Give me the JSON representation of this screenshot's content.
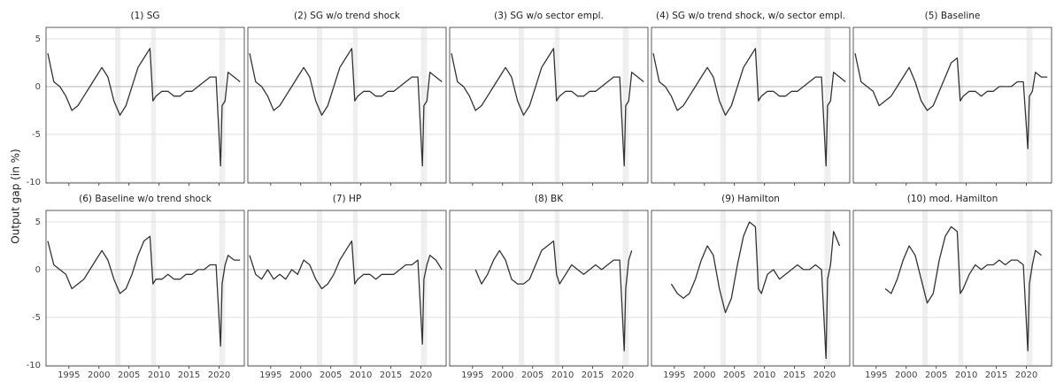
{
  "ylabel": "Output gap (in %)",
  "shaded_periods": [
    [
      2002.7,
      2003.6
    ],
    [
      2008.7,
      2009.5
    ],
    [
      2020.0,
      2021.0
    ]
  ],
  "chart_data": [
    {
      "type": "line",
      "title": "(1) SG",
      "x": [
        1991.5,
        1992.5,
        1993.5,
        1994.5,
        1995.5,
        1996.5,
        1997.5,
        1998.5,
        1999.5,
        2000.5,
        2001.5,
        2002.5,
        2003.5,
        2004.5,
        2005.5,
        2006.5,
        2007.5,
        2008.5,
        2009.0,
        2009.5,
        2010.5,
        2011.5,
        2012.5,
        2013.5,
        2014.5,
        2015.5,
        2016.5,
        2017.5,
        2018.5,
        2019.5,
        2020.25,
        2020.5,
        2021.0,
        2021.5,
        2022.5,
        2023.5
      ],
      "series": [
        {
          "color": "#333333",
          "values": [
            3.5,
            0.5,
            0.0,
            -1.0,
            -2.5,
            -2.0,
            -1.0,
            0.0,
            1.0,
            2.0,
            1.0,
            -1.5,
            -3.0,
            -2.0,
            0.0,
            2.0,
            3.0,
            4.0,
            -1.5,
            -1.0,
            -0.5,
            -0.5,
            -1.0,
            -1.0,
            -0.5,
            -0.5,
            0.0,
            0.5,
            1.0,
            1.0,
            -8.3,
            -2.0,
            -1.5,
            1.5,
            1.0,
            0.5
          ]
        }
      ],
      "xlim": [
        1991.2,
        2024.2
      ],
      "xticks": [
        1995,
        2000,
        2005,
        2010,
        2015,
        2020
      ],
      "ylim": [
        -10.1,
        6.2
      ],
      "yticks": [
        -10,
        -5,
        0,
        5
      ]
    },
    {
      "type": "line",
      "title": "(2) SG w/o trend shock",
      "x": [
        1991.5,
        1992.5,
        1993.5,
        1994.5,
        1995.5,
        1996.5,
        1997.5,
        1998.5,
        1999.5,
        2000.5,
        2001.5,
        2002.5,
        2003.5,
        2004.5,
        2005.5,
        2006.5,
        2007.5,
        2008.5,
        2009.0,
        2009.5,
        2010.5,
        2011.5,
        2012.5,
        2013.5,
        2014.5,
        2015.5,
        2016.5,
        2017.5,
        2018.5,
        2019.5,
        2020.25,
        2020.5,
        2021.0,
        2021.5,
        2022.5,
        2023.5
      ],
      "series": [
        {
          "color": "#333333",
          "values": [
            3.5,
            0.5,
            0.0,
            -1.0,
            -2.5,
            -2.0,
            -1.0,
            0.0,
            1.0,
            2.0,
            1.0,
            -1.5,
            -3.0,
            -2.0,
            0.0,
            2.0,
            3.0,
            4.0,
            -1.5,
            -1.0,
            -0.5,
            -0.5,
            -1.0,
            -1.0,
            -0.5,
            -0.5,
            0.0,
            0.5,
            1.0,
            1.0,
            -8.3,
            -2.0,
            -1.5,
            1.5,
            1.0,
            0.5
          ]
        }
      ],
      "xlim": [
        1991.2,
        2024.2
      ],
      "xticks": [
        1995,
        2000,
        2005,
        2010,
        2015,
        2020
      ],
      "ylim": [
        -10.1,
        6.2
      ],
      "yticks": [
        -10,
        -5,
        0,
        5
      ]
    },
    {
      "type": "line",
      "title": "(3) SG w/o sector empl.",
      "x": [
        1991.5,
        1992.5,
        1993.5,
        1994.5,
        1995.5,
        1996.5,
        1997.5,
        1998.5,
        1999.5,
        2000.5,
        2001.5,
        2002.5,
        2003.5,
        2004.5,
        2005.5,
        2006.5,
        2007.5,
        2008.5,
        2009.0,
        2009.5,
        2010.5,
        2011.5,
        2012.5,
        2013.5,
        2014.5,
        2015.5,
        2016.5,
        2017.5,
        2018.5,
        2019.5,
        2020.25,
        2020.5,
        2021.0,
        2021.5,
        2022.5,
        2023.5
      ],
      "series": [
        {
          "color": "#333333",
          "values": [
            3.5,
            0.5,
            0.0,
            -1.0,
            -2.5,
            -2.0,
            -1.0,
            0.0,
            1.0,
            2.0,
            1.0,
            -1.5,
            -3.0,
            -2.0,
            0.0,
            2.0,
            3.0,
            4.0,
            -1.5,
            -1.0,
            -0.5,
            -0.5,
            -1.0,
            -1.0,
            -0.5,
            -0.5,
            0.0,
            0.5,
            1.0,
            1.0,
            -8.3,
            -2.0,
            -1.5,
            1.5,
            1.0,
            0.5
          ]
        }
      ],
      "xlim": [
        1991.2,
        2024.2
      ],
      "xticks": [
        1995,
        2000,
        2005,
        2010,
        2015,
        2020
      ],
      "ylim": [
        -10.1,
        6.2
      ],
      "yticks": [
        -10,
        -5,
        0,
        5
      ]
    },
    {
      "type": "line",
      "title": "(4) SG w/o trend shock, w/o sector empl.",
      "x": [
        1991.5,
        1992.5,
        1993.5,
        1994.5,
        1995.5,
        1996.5,
        1997.5,
        1998.5,
        1999.5,
        2000.5,
        2001.5,
        2002.5,
        2003.5,
        2004.5,
        2005.5,
        2006.5,
        2007.5,
        2008.5,
        2009.0,
        2009.5,
        2010.5,
        2011.5,
        2012.5,
        2013.5,
        2014.5,
        2015.5,
        2016.5,
        2017.5,
        2018.5,
        2019.5,
        2020.25,
        2020.5,
        2021.0,
        2021.5,
        2022.5,
        2023.5
      ],
      "series": [
        {
          "color": "#333333",
          "values": [
            3.5,
            0.5,
            0.0,
            -1.0,
            -2.5,
            -2.0,
            -1.0,
            0.0,
            1.0,
            2.0,
            1.0,
            -1.5,
            -3.0,
            -2.0,
            0.0,
            2.0,
            3.0,
            4.0,
            -1.5,
            -1.0,
            -0.5,
            -0.5,
            -1.0,
            -1.0,
            -0.5,
            -0.5,
            0.0,
            0.5,
            1.0,
            1.0,
            -8.3,
            -2.0,
            -1.5,
            1.5,
            1.0,
            0.5
          ]
        }
      ],
      "xlim": [
        1991.2,
        2024.2
      ],
      "xticks": [
        1995,
        2000,
        2005,
        2010,
        2015,
        2020
      ],
      "ylim": [
        -10.1,
        6.2
      ],
      "yticks": [
        -10,
        -5,
        0,
        5
      ]
    },
    {
      "type": "line",
      "title": "(5) Baseline",
      "x": [
        1991.5,
        1992.5,
        1993.5,
        1994.5,
        1995.5,
        1996.5,
        1997.5,
        1998.5,
        1999.5,
        2000.5,
        2001.5,
        2002.5,
        2003.5,
        2004.5,
        2005.5,
        2006.5,
        2007.5,
        2008.5,
        2009.0,
        2009.5,
        2010.5,
        2011.5,
        2012.5,
        2013.5,
        2014.5,
        2015.5,
        2016.5,
        2017.5,
        2018.5,
        2019.5,
        2020.25,
        2020.5,
        2021.0,
        2021.5,
        2022.5,
        2023.5
      ],
      "series": [
        {
          "color": "#333333",
          "values": [
            3.5,
            0.5,
            0.0,
            -0.5,
            -2.0,
            -1.5,
            -1.0,
            0.0,
            1.0,
            2.0,
            0.5,
            -1.5,
            -2.5,
            -2.0,
            -0.5,
            1.0,
            2.5,
            3.0,
            -1.5,
            -1.0,
            -0.5,
            -0.5,
            -1.0,
            -0.5,
            -0.5,
            0.0,
            0.0,
            0.0,
            0.5,
            0.5,
            -6.5,
            -1.0,
            -0.5,
            1.5,
            1.0,
            1.0
          ]
        }
      ],
      "xlim": [
        1991.2,
        2024.2
      ],
      "xticks": [
        1995,
        2000,
        2005,
        2010,
        2015,
        2020
      ],
      "ylim": [
        -10.1,
        6.2
      ],
      "yticks": [
        -10,
        -5,
        0,
        5
      ]
    },
    {
      "type": "line",
      "title": "(6) Baseline w/o trend shock",
      "x": [
        1991.5,
        1992.5,
        1993.5,
        1994.5,
        1995.5,
        1996.5,
        1997.5,
        1998.5,
        1999.5,
        2000.5,
        2001.5,
        2002.5,
        2003.5,
        2004.5,
        2005.5,
        2006.5,
        2007.5,
        2008.5,
        2009.0,
        2009.5,
        2010.5,
        2011.5,
        2012.5,
        2013.5,
        2014.5,
        2015.5,
        2016.5,
        2017.5,
        2018.5,
        2019.5,
        2020.25,
        2020.5,
        2021.0,
        2021.5,
        2022.5,
        2023.5
      ],
      "series": [
        {
          "color": "#333333",
          "values": [
            3.0,
            0.5,
            0.0,
            -0.5,
            -2.0,
            -1.5,
            -1.0,
            0.0,
            1.0,
            2.0,
            1.0,
            -1.0,
            -2.5,
            -2.0,
            -0.5,
            1.5,
            3.0,
            3.5,
            -1.5,
            -1.0,
            -1.0,
            -0.5,
            -1.0,
            -1.0,
            -0.5,
            -0.5,
            0.0,
            0.0,
            0.5,
            0.5,
            -8.0,
            -1.5,
            0.5,
            1.5,
            1.0,
            1.0
          ]
        }
      ],
      "xlim": [
        1991.2,
        2024.2
      ],
      "xticks": [
        1995,
        2000,
        2005,
        2010,
        2015,
        2020
      ],
      "ylim": [
        -10.1,
        6.2
      ],
      "yticks": [
        -10,
        -5,
        0,
        5
      ]
    },
    {
      "type": "line",
      "title": "(7) HP",
      "x": [
        1991.5,
        1992.5,
        1993.5,
        1994.5,
        1995.5,
        1996.5,
        1997.5,
        1998.5,
        1999.5,
        2000.5,
        2001.5,
        2002.5,
        2003.5,
        2004.5,
        2005.5,
        2006.5,
        2007.5,
        2008.5,
        2009.0,
        2009.5,
        2010.5,
        2011.5,
        2012.5,
        2013.5,
        2014.5,
        2015.5,
        2016.5,
        2017.5,
        2018.5,
        2019.5,
        2020.25,
        2020.5,
        2021.0,
        2021.5,
        2022.5,
        2023.5
      ],
      "series": [
        {
          "color": "#333333",
          "values": [
            1.5,
            -0.5,
            -1.0,
            0.0,
            -1.0,
            -0.5,
            -1.0,
            0.0,
            -0.5,
            1.0,
            0.5,
            -1.0,
            -2.0,
            -1.5,
            -0.5,
            1.0,
            2.0,
            3.0,
            -1.5,
            -1.0,
            -0.5,
            -0.5,
            -1.0,
            -0.5,
            -0.5,
            -0.5,
            0.0,
            0.5,
            0.5,
            1.0,
            -7.8,
            -1.0,
            0.5,
            1.5,
            1.0,
            0.0
          ]
        }
      ],
      "xlim": [
        1991.2,
        2024.2
      ],
      "xticks": [
        1995,
        2000,
        2005,
        2010,
        2015,
        2020
      ],
      "ylim": [
        -10.1,
        6.2
      ],
      "yticks": [
        -10,
        -5,
        0,
        5
      ]
    },
    {
      "type": "line",
      "title": "(8) BK",
      "x": [
        1991.5,
        1992.5,
        1993.5,
        1994.5,
        1995.5,
        1996.5,
        1997.5,
        1998.5,
        1999.5,
        2000.5,
        2001.5,
        2002.5,
        2003.5,
        2004.5,
        2005.5,
        2006.5,
        2007.5,
        2008.5,
        2009.0,
        2009.5,
        2010.5,
        2011.5,
        2012.5,
        2013.5,
        2014.5,
        2015.5,
        2016.5,
        2017.5,
        2018.5,
        2019.5,
        2020.25,
        2020.5,
        2021.0,
        2021.5,
        2022.5,
        2023.5
      ],
      "series": [
        {
          "color": "#333333",
          "values": [
            null,
            null,
            null,
            null,
            0.0,
            -1.5,
            -0.5,
            1.0,
            2.0,
            1.0,
            -1.0,
            -1.5,
            -1.5,
            -1.0,
            0.5,
            2.0,
            2.5,
            3.0,
            -0.5,
            -1.5,
            -0.5,
            0.5,
            0.0,
            -0.5,
            0.0,
            0.5,
            0.0,
            0.5,
            1.0,
            1.0,
            -8.5,
            -2.0,
            1.0,
            2.0,
            null,
            null
          ]
        }
      ],
      "xlim": [
        1991.2,
        2024.2
      ],
      "xticks": [
        1995,
        2000,
        2005,
        2010,
        2015,
        2020
      ],
      "ylim": [
        -10.1,
        6.2
      ],
      "yticks": [
        -10,
        -5,
        0,
        5
      ]
    },
    {
      "type": "line",
      "title": "(9) Hamilton",
      "x": [
        1991.5,
        1992.5,
        1993.5,
        1994.5,
        1995.5,
        1996.5,
        1997.5,
        1998.5,
        1999.5,
        2000.5,
        2001.5,
        2002.5,
        2003.5,
        2004.5,
        2005.5,
        2006.5,
        2007.5,
        2008.5,
        2009.0,
        2009.5,
        2010.5,
        2011.5,
        2012.5,
        2013.5,
        2014.5,
        2015.5,
        2016.5,
        2017.5,
        2018.5,
        2019.5,
        2020.25,
        2020.5,
        2021.0,
        2021.5,
        2022.5,
        2023.5
      ],
      "series": [
        {
          "color": "#333333",
          "values": [
            null,
            null,
            null,
            -1.5,
            -2.5,
            -3.0,
            -2.5,
            -1.0,
            1.0,
            2.5,
            1.5,
            -2.0,
            -4.5,
            -3.0,
            0.5,
            3.5,
            5.0,
            4.5,
            -2.0,
            -2.5,
            -0.5,
            0.0,
            -1.0,
            -0.5,
            0.0,
            0.5,
            0.0,
            0.0,
            0.5,
            0.0,
            -9.3,
            -1.0,
            0.5,
            4.0,
            2.5,
            null
          ]
        }
      ],
      "xlim": [
        1991.2,
        2024.2
      ],
      "xticks": [
        1995,
        2000,
        2005,
        2010,
        2015,
        2020
      ],
      "ylim": [
        -10.1,
        6.2
      ],
      "yticks": [
        -10,
        -5,
        0,
        5
      ]
    },
    {
      "type": "line",
      "title": "(10) mod. Hamilton",
      "x": [
        1991.5,
        1992.5,
        1993.5,
        1994.5,
        1995.5,
        1996.5,
        1997.5,
        1998.5,
        1999.5,
        2000.5,
        2001.5,
        2002.5,
        2003.5,
        2004.5,
        2005.5,
        2006.5,
        2007.5,
        2008.5,
        2009.0,
        2009.5,
        2010.5,
        2011.5,
        2012.5,
        2013.5,
        2014.5,
        2015.5,
        2016.5,
        2017.5,
        2018.5,
        2019.5,
        2020.25,
        2020.5,
        2021.0,
        2021.5,
        2022.5,
        2023.5
      ],
      "series": [
        {
          "color": "#333333",
          "values": [
            null,
            null,
            null,
            null,
            null,
            -2.0,
            -2.5,
            -1.0,
            1.0,
            2.5,
            1.5,
            -1.0,
            -3.5,
            -2.5,
            1.0,
            3.5,
            4.5,
            4.0,
            -2.5,
            -2.0,
            -0.5,
            0.5,
            0.0,
            0.5,
            0.5,
            1.0,
            0.5,
            1.0,
            1.0,
            0.5,
            -8.5,
            -1.5,
            0.5,
            2.0,
            1.5,
            null
          ]
        }
      ],
      "xlim": [
        1991.2,
        2024.2
      ],
      "xticks": [
        1995,
        2000,
        2005,
        2010,
        2015,
        2020
      ],
      "ylim": [
        -10.1,
        6.2
      ],
      "yticks": [
        -10,
        -5,
        0,
        5
      ]
    }
  ]
}
